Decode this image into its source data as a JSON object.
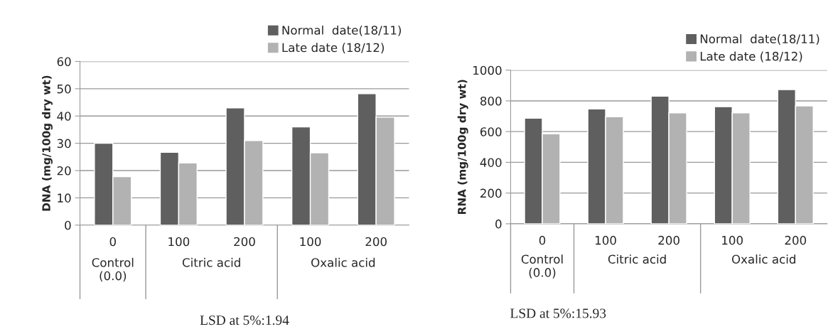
{
  "chart_data": [
    {
      "type": "bar",
      "ylabel": "DNA (mg/100g dry wt)",
      "categories": [
        "0",
        "100",
        "200",
        "100",
        "200"
      ],
      "series": [
        {
          "name": "Normal  date(18/11)",
          "color": "#5f5f5f",
          "values": [
            30,
            26.7,
            43,
            36,
            48.2
          ]
        },
        {
          "name": "Late date (18/12)",
          "color": "#b2b2b2",
          "values": [
            17.8,
            22.8,
            31,
            26.5,
            39.6
          ]
        }
      ],
      "ylim": [
        0,
        60
      ],
      "yticks": [
        0,
        10,
        20,
        30,
        40,
        50,
        60
      ],
      "grid": "y",
      "legend": "top right",
      "annotations": [
        "Control\n(0.0)",
        "Citric acid",
        "Oxalic acid",
        "LSD at 5%:1.94"
      ]
    },
    {
      "type": "bar",
      "ylabel": "RNA (mg/100g dry wt)",
      "categories": [
        "0",
        "100",
        "200",
        "100",
        "200"
      ],
      "series": [
        {
          "name": "Normal  date(18/11)",
          "color": "#5f5f5f",
          "values": [
            687,
            748,
            831,
            762,
            873
          ]
        },
        {
          "name": "Late date (18/12)",
          "color": "#b2b2b2",
          "values": [
            586,
            697,
            722,
            722,
            767
          ]
        }
      ],
      "ylim": [
        0,
        1000
      ],
      "yticks": [
        0,
        200,
        400,
        600,
        800,
        1000
      ],
      "grid": "y",
      "legend": "top right",
      "annotations": [
        "Control\n(0.0)",
        "Citric acid",
        "Oxalic acid",
        "LSD at 5%:15.93"
      ]
    }
  ]
}
